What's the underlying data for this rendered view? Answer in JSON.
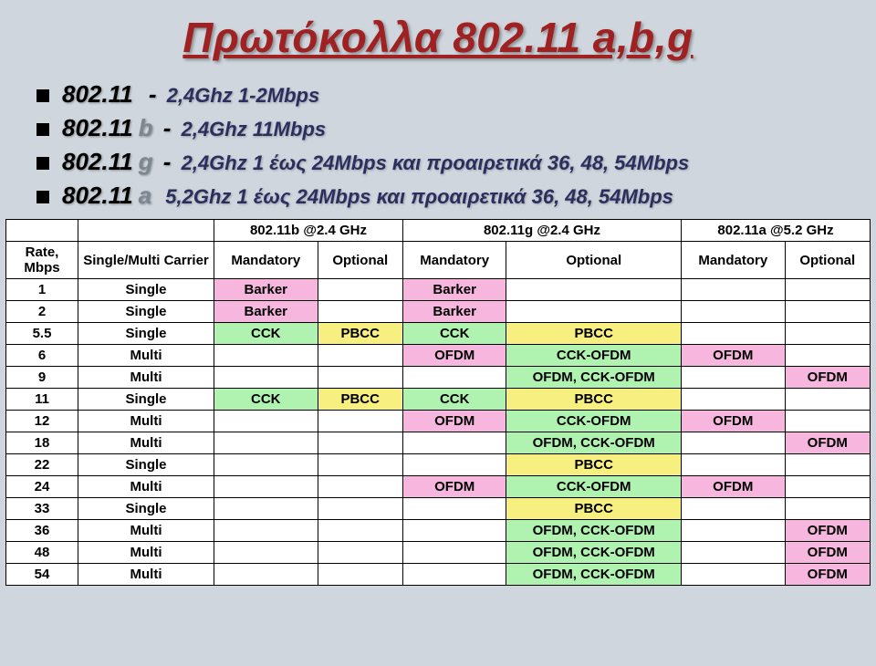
{
  "title": "Πρωτόκολλα 802.11 a,b,g",
  "bullets": [
    {
      "lead": "802.11",
      "gray": "",
      "dash": " - ",
      "desc": "2,4Ghz 1-2Mbps"
    },
    {
      "lead": "802.11",
      "gray": "b",
      "dash": " - ",
      "desc": "2,4Ghz 11Mbps"
    },
    {
      "lead": "802.11",
      "gray": "g",
      "dash": " - ",
      "desc": "2,4Ghz 1 έως 24Mbps και προαιρετικά 36, 48, 54Mbps"
    },
    {
      "lead": "802.11",
      "gray": "a",
      "dash": " ",
      "desc": "5,2Ghz 1 έως 24Mbps και προαιρετικά 36, 48, 54Mbps"
    }
  ],
  "table": {
    "top_headers": {
      "rate": "Rate, Mbps",
      "carrier": "Single/Multi Carrier",
      "b": "802.11b @2.4 GHz",
      "g": "802.11g @2.4 GHz",
      "a": "802.11a @5.2 GHz"
    },
    "sub_headers": {
      "mand": "Mandatory",
      "opt": "Optional"
    },
    "cell_colors": {
      "pink": "#f7b6de",
      "green": "#b0f3b0",
      "yellow": "#f7ef80",
      "white": "#ffffff"
    },
    "rows": [
      {
        "rate": "1",
        "carrier": "Single",
        "b_m": {
          "t": "Barker",
          "c": "pink"
        },
        "b_o": {
          "t": "",
          "c": "white"
        },
        "g_m": {
          "t": "Barker",
          "c": "pink"
        },
        "g_o": {
          "t": "",
          "c": "white"
        },
        "a_m": {
          "t": "",
          "c": "white"
        },
        "a_o": {
          "t": "",
          "c": "white"
        }
      },
      {
        "rate": "2",
        "carrier": "Single",
        "b_m": {
          "t": "Barker",
          "c": "pink"
        },
        "b_o": {
          "t": "",
          "c": "white"
        },
        "g_m": {
          "t": "Barker",
          "c": "pink"
        },
        "g_o": {
          "t": "",
          "c": "white"
        },
        "a_m": {
          "t": "",
          "c": "white"
        },
        "a_o": {
          "t": "",
          "c": "white"
        }
      },
      {
        "rate": "5.5",
        "carrier": "Single",
        "b_m": {
          "t": "CCK",
          "c": "green"
        },
        "b_o": {
          "t": "PBCC",
          "c": "yellow"
        },
        "g_m": {
          "t": "CCK",
          "c": "green"
        },
        "g_o": {
          "t": "PBCC",
          "c": "yellow"
        },
        "a_m": {
          "t": "",
          "c": "white"
        },
        "a_o": {
          "t": "",
          "c": "white"
        }
      },
      {
        "rate": "6",
        "carrier": "Multi",
        "b_m": {
          "t": "",
          "c": "white"
        },
        "b_o": {
          "t": "",
          "c": "white"
        },
        "g_m": {
          "t": "OFDM",
          "c": "pink"
        },
        "g_o": {
          "t": "CCK-OFDM",
          "c": "green"
        },
        "a_m": {
          "t": "OFDM",
          "c": "pink"
        },
        "a_o": {
          "t": "",
          "c": "white"
        }
      },
      {
        "rate": "9",
        "carrier": "Multi",
        "b_m": {
          "t": "",
          "c": "white"
        },
        "b_o": {
          "t": "",
          "c": "white"
        },
        "g_m": {
          "t": "",
          "c": "white"
        },
        "g_o": {
          "t": "OFDM, CCK-OFDM",
          "c": "green"
        },
        "a_m": {
          "t": "",
          "c": "white"
        },
        "a_o": {
          "t": "OFDM",
          "c": "pink"
        }
      },
      {
        "rate": "11",
        "carrier": "Single",
        "b_m": {
          "t": "CCK",
          "c": "green"
        },
        "b_o": {
          "t": "PBCC",
          "c": "yellow"
        },
        "g_m": {
          "t": "CCK",
          "c": "green"
        },
        "g_o": {
          "t": "PBCC",
          "c": "yellow"
        },
        "a_m": {
          "t": "",
          "c": "white"
        },
        "a_o": {
          "t": "",
          "c": "white"
        }
      },
      {
        "rate": "12",
        "carrier": "Multi",
        "b_m": {
          "t": "",
          "c": "white"
        },
        "b_o": {
          "t": "",
          "c": "white"
        },
        "g_m": {
          "t": "OFDM",
          "c": "pink"
        },
        "g_o": {
          "t": "CCK-OFDM",
          "c": "green"
        },
        "a_m": {
          "t": "OFDM",
          "c": "pink"
        },
        "a_o": {
          "t": "",
          "c": "white"
        }
      },
      {
        "rate": "18",
        "carrier": "Multi",
        "b_m": {
          "t": "",
          "c": "white"
        },
        "b_o": {
          "t": "",
          "c": "white"
        },
        "g_m": {
          "t": "",
          "c": "white"
        },
        "g_o": {
          "t": "OFDM, CCK-OFDM",
          "c": "green"
        },
        "a_m": {
          "t": "",
          "c": "white"
        },
        "a_o": {
          "t": "OFDM",
          "c": "pink"
        }
      },
      {
        "rate": "22",
        "carrier": "Single",
        "b_m": {
          "t": "",
          "c": "white"
        },
        "b_o": {
          "t": "",
          "c": "white"
        },
        "g_m": {
          "t": "",
          "c": "white"
        },
        "g_o": {
          "t": "PBCC",
          "c": "yellow"
        },
        "a_m": {
          "t": "",
          "c": "white"
        },
        "a_o": {
          "t": "",
          "c": "white"
        }
      },
      {
        "rate": "24",
        "carrier": "Multi",
        "b_m": {
          "t": "",
          "c": "white"
        },
        "b_o": {
          "t": "",
          "c": "white"
        },
        "g_m": {
          "t": "OFDM",
          "c": "pink"
        },
        "g_o": {
          "t": "CCK-OFDM",
          "c": "green"
        },
        "a_m": {
          "t": "OFDM",
          "c": "pink"
        },
        "a_o": {
          "t": "",
          "c": "white"
        }
      },
      {
        "rate": "33",
        "carrier": "Single",
        "b_m": {
          "t": "",
          "c": "white"
        },
        "b_o": {
          "t": "",
          "c": "white"
        },
        "g_m": {
          "t": "",
          "c": "white"
        },
        "g_o": {
          "t": "PBCC",
          "c": "yellow"
        },
        "a_m": {
          "t": "",
          "c": "white"
        },
        "a_o": {
          "t": "",
          "c": "white"
        }
      },
      {
        "rate": "36",
        "carrier": "Multi",
        "b_m": {
          "t": "",
          "c": "white"
        },
        "b_o": {
          "t": "",
          "c": "white"
        },
        "g_m": {
          "t": "",
          "c": "white"
        },
        "g_o": {
          "t": "OFDM, CCK-OFDM",
          "c": "green"
        },
        "a_m": {
          "t": "",
          "c": "white"
        },
        "a_o": {
          "t": "OFDM",
          "c": "pink"
        }
      },
      {
        "rate": "48",
        "carrier": "Multi",
        "b_m": {
          "t": "",
          "c": "white"
        },
        "b_o": {
          "t": "",
          "c": "white"
        },
        "g_m": {
          "t": "",
          "c": "white"
        },
        "g_o": {
          "t": "OFDM, CCK-OFDM",
          "c": "green"
        },
        "a_m": {
          "t": "",
          "c": "white"
        },
        "a_o": {
          "t": "OFDM",
          "c": "pink"
        }
      },
      {
        "rate": "54",
        "carrier": "Multi",
        "b_m": {
          "t": "",
          "c": "white"
        },
        "b_o": {
          "t": "",
          "c": "white"
        },
        "g_m": {
          "t": "",
          "c": "white"
        },
        "g_o": {
          "t": "OFDM, CCK-OFDM",
          "c": "green"
        },
        "a_m": {
          "t": "",
          "c": "white"
        },
        "a_o": {
          "t": "OFDM",
          "c": "pink"
        }
      }
    ]
  }
}
